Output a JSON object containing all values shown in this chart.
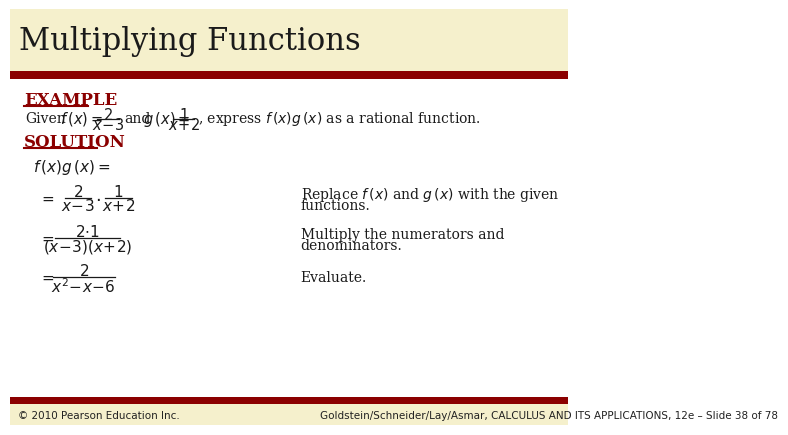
{
  "title": "Multiplying Functions",
  "title_color": "#1a1a1a",
  "title_bg_color": "#f5f0cc",
  "title_bar_color": "#8b0000",
  "main_bg_color": "#ffffff",
  "example_label": "EXAMPLE",
  "solution_label": "SOLUTION",
  "accent_color": "#8b0000",
  "footer_left": "© 2010 Pearson Education Inc.",
  "footer_right": "Goldstein/Schneider/Lay/Asmar, CALCULUS AND ITS APPLICATIONS, 12e – Slide 38 of 78",
  "footer_bg": "#f5f0cc",
  "footer_bar_color": "#8b0000"
}
